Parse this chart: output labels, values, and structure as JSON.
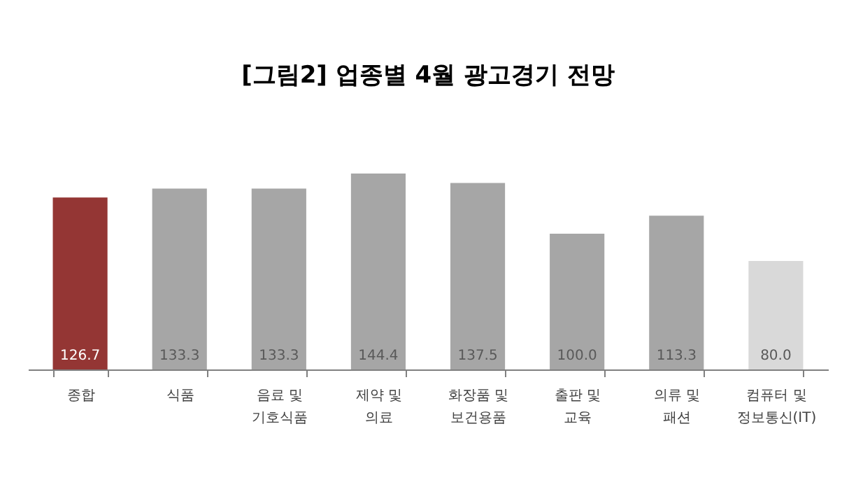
{
  "chart_data": {
    "type": "bar",
    "title": "[그림2] 업종별 4월 광고경기 전망",
    "categories": [
      "종합",
      "식품",
      "음료 및\n기호식품",
      "제약 및\n의료",
      "화장품 및\n보건용품",
      "출판 및\n교육",
      "의류 및\n패션",
      "컴퓨터 및\n정보통신(IT)"
    ],
    "values": [
      126.7,
      133.3,
      133.3,
      144.4,
      137.5,
      100.0,
      113.3,
      80.0
    ],
    "colors": [
      "#943634",
      "#a6a6a6",
      "#a6a6a6",
      "#a6a6a6",
      "#a6a6a6",
      "#a6a6a6",
      "#a6a6a6",
      "#d9d9d9"
    ],
    "value_labels": [
      "126.7",
      "133.3",
      "133.3",
      "144.4",
      "137.5",
      "100.0",
      "113.3",
      "80.0"
    ],
    "grid": false
  }
}
